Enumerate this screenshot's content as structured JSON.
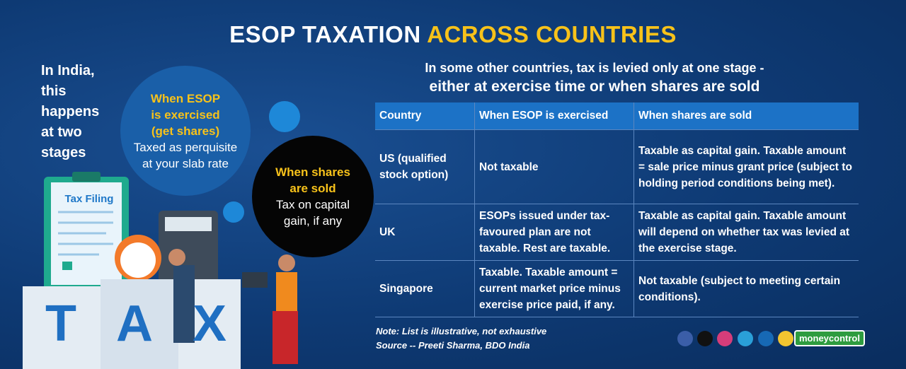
{
  "header": {
    "title": "ESOP TAXATION",
    "title_highlight": "ACROSS COUNTRIES"
  },
  "india": {
    "intro": "In India, this happens at two stages",
    "stage1": {
      "heading": "When ESOP is exercised (get shares)",
      "text": "Taxed as perquisite at your slab rate"
    },
    "stage2": {
      "heading": "When shares are sold",
      "text": "Tax on capital gain, if any"
    }
  },
  "illustration": {
    "clipboard": "Tax Filing",
    "blocks": [
      "T",
      "A",
      "X"
    ]
  },
  "other": {
    "intro": "In some other countries, tax is levied only at one stage -",
    "intro2": "either at exercise time or when shares are sold"
  },
  "table": {
    "columns": [
      "Country",
      "When ESOP is exercised",
      "When shares are sold"
    ],
    "rows": [
      [
        "US (qualified stock option)",
        "Not taxable",
        "Taxable as capital gain. Taxable amount = sale price minus grant price (subject to holding period conditions being met)."
      ],
      [
        "UK",
        "ESOPs issued under tax-favoured plan are not taxable. Rest are taxable.",
        "Taxable as capital gain. Taxable amount will depend on whether tax was levied at the exercise stage."
      ],
      [
        "Singapore",
        "Taxable. Taxable amount = current market price minus exercise price paid, if any.",
        "Not taxable (subject to meeting certain conditions)."
      ]
    ]
  },
  "footer": {
    "note": "Note: List is illustrative, not exhaustive",
    "source": "Source -- Preeti Sharma, BDO India",
    "brand": "moneycontrol"
  }
}
